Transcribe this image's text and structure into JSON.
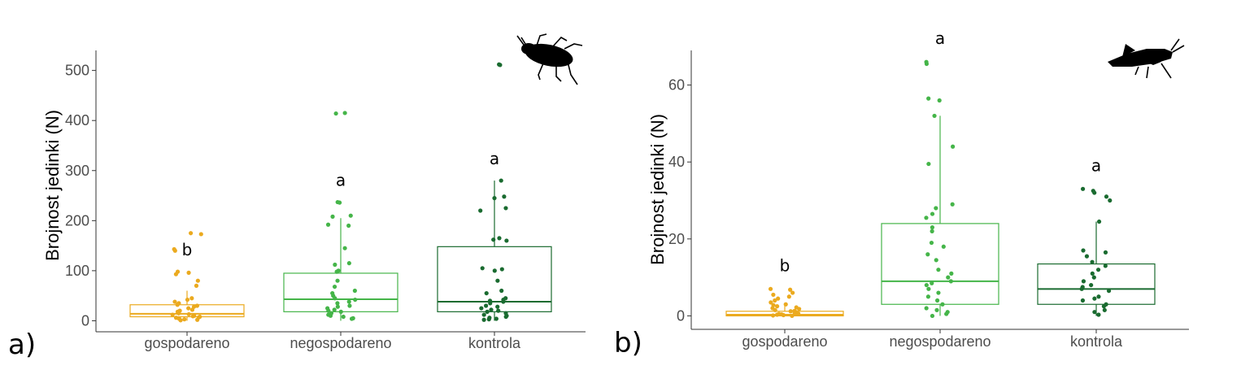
{
  "chart_data": [
    {
      "type": "boxplot",
      "panel_label": "a)",
      "ylabel": "Brojnost jedinki (N)",
      "xlabel": "",
      "categories": [
        "gospodareno",
        "negospodareno",
        "kontrola"
      ],
      "ylim": [
        -22,
        540
      ],
      "yticks": [
        0,
        100,
        200,
        300,
        400,
        500
      ],
      "ytick_labels": [
        "0",
        "100",
        "200",
        "300",
        "400",
        "500"
      ],
      "grid": false,
      "colors": [
        "#EBAA1F",
        "#45B549",
        "#1A6B30"
      ],
      "icon": "beetle-silhouette-icon",
      "groups": [
        {
          "name": "gospodareno",
          "letter": "b",
          "box": {
            "whisker_low": 0,
            "q1": 8,
            "median": 14,
            "q3": 32,
            "whisker_high": 60
          },
          "points": [
            175,
            173,
            143,
            140,
            98,
            96,
            93,
            80,
            70,
            45,
            42,
            38,
            35,
            32,
            30,
            28,
            25,
            22,
            20,
            18,
            15,
            13,
            12,
            10,
            9,
            8,
            7,
            6,
            5,
            4,
            3,
            2,
            1
          ]
        },
        {
          "name": "negospodareno",
          "letter": "a",
          "box": {
            "whisker_low": 0,
            "q1": 18,
            "median": 43,
            "q3": 95,
            "whisker_high": 205
          },
          "points": [
            415,
            414,
            237,
            236,
            210,
            208,
            192,
            190,
            145,
            115,
            112,
            100,
            98,
            80,
            68,
            60,
            55,
            50,
            45,
            42,
            38,
            35,
            30,
            28,
            25,
            22,
            20,
            18,
            15,
            12,
            10,
            8,
            5,
            4
          ]
        },
        {
          "name": "kontrola",
          "letter": "a",
          "box": {
            "whisker_low": 0,
            "q1": 18,
            "median": 38,
            "q3": 148,
            "whisker_high": 280
          },
          "points": [
            512,
            511,
            280,
            248,
            245,
            225,
            220,
            165,
            162,
            160,
            105,
            103,
            100,
            80,
            60,
            55,
            45,
            42,
            40,
            38,
            35,
            30,
            28,
            25,
            22,
            20,
            18,
            15,
            12,
            10,
            8,
            6,
            4,
            3,
            2
          ]
        }
      ]
    },
    {
      "type": "boxplot",
      "panel_label": "b)",
      "ylabel": "Brojnost jedinki (N)",
      "xlabel": "",
      "categories": [
        "gospodareno",
        "negospodareno",
        "kontrola"
      ],
      "ylim": [
        -3.5,
        69
      ],
      "yticks": [
        0,
        20,
        40,
        60
      ],
      "ytick_labels": [
        "0",
        "20",
        "40",
        "60"
      ],
      "grid": false,
      "colors": [
        "#EBAA1F",
        "#45B549",
        "#1A6B30"
      ],
      "icon": "grasshopper-silhouette-icon",
      "groups": [
        {
          "name": "gospodareno",
          "letter": "b",
          "box": {
            "whisker_low": 0,
            "q1": 0,
            "median": 0.3,
            "q3": 1.2,
            "whisker_high": 3
          },
          "points": [
            7,
            6.8,
            6,
            5.5,
            5,
            4.5,
            4,
            3.5,
            3,
            2.8,
            2.5,
            2.2,
            2,
            1.8,
            1.5,
            1.3,
            1.2,
            1,
            0.8,
            0.6,
            0.5,
            0.4,
            0.3,
            0.2,
            0.1,
            0
          ]
        },
        {
          "name": "negospodareno",
          "letter": "a",
          "box": {
            "whisker_low": 0,
            "q1": 3,
            "median": 9,
            "q3": 24,
            "whisker_high": 52
          },
          "points": [
            66,
            65.5,
            56.5,
            56,
            52,
            44,
            39.5,
            29,
            28,
            26.5,
            25.5,
            23,
            22,
            19,
            18,
            16,
            14.5,
            12,
            11,
            10,
            9,
            8.5,
            8,
            7,
            6,
            5,
            4,
            3,
            2,
            1.5,
            1,
            0.5,
            0
          ]
        },
        {
          "name": "kontrola",
          "letter": "a",
          "box": {
            "whisker_low": 0,
            "q1": 3,
            "median": 7,
            "q3": 13.5,
            "whisker_high": 24.5
          },
          "points": [
            33,
            32.5,
            32,
            31,
            30,
            24.5,
            17,
            16.5,
            15.5,
            14,
            13,
            12,
            11,
            10,
            9,
            8,
            7.5,
            7,
            6.5,
            5,
            4.5,
            4,
            3,
            2.5,
            1.5,
            1,
            0.3
          ]
        }
      ]
    }
  ]
}
